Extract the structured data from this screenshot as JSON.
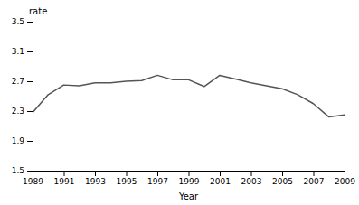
{
  "chart_data": {
    "type": "line",
    "x": [
      1989,
      1990,
      1991,
      1992,
      1993,
      1994,
      1995,
      1996,
      1997,
      1998,
      1999,
      2000,
      2001,
      2002,
      2003,
      2004,
      2005,
      2006,
      2007,
      2008,
      2009
    ],
    "values": [
      2.28,
      2.52,
      2.65,
      2.64,
      2.68,
      2.68,
      2.7,
      2.71,
      2.78,
      2.72,
      2.72,
      2.63,
      2.78,
      2.73,
      2.68,
      2.64,
      2.6,
      2.52,
      2.4,
      2.22,
      2.25
    ],
    "color": "#555555",
    "xlabel": "Year",
    "ylabel": "rate",
    "xlim": [
      1989,
      2009
    ],
    "ylim": [
      1.5,
      3.5
    ],
    "xticks": [
      1989,
      1991,
      1993,
      1995,
      1997,
      1999,
      2001,
      2003,
      2005,
      2007,
      2009
    ],
    "yticks": [
      1.5,
      1.9,
      2.3,
      2.7,
      3.1,
      3.5
    ],
    "grid": false
  }
}
